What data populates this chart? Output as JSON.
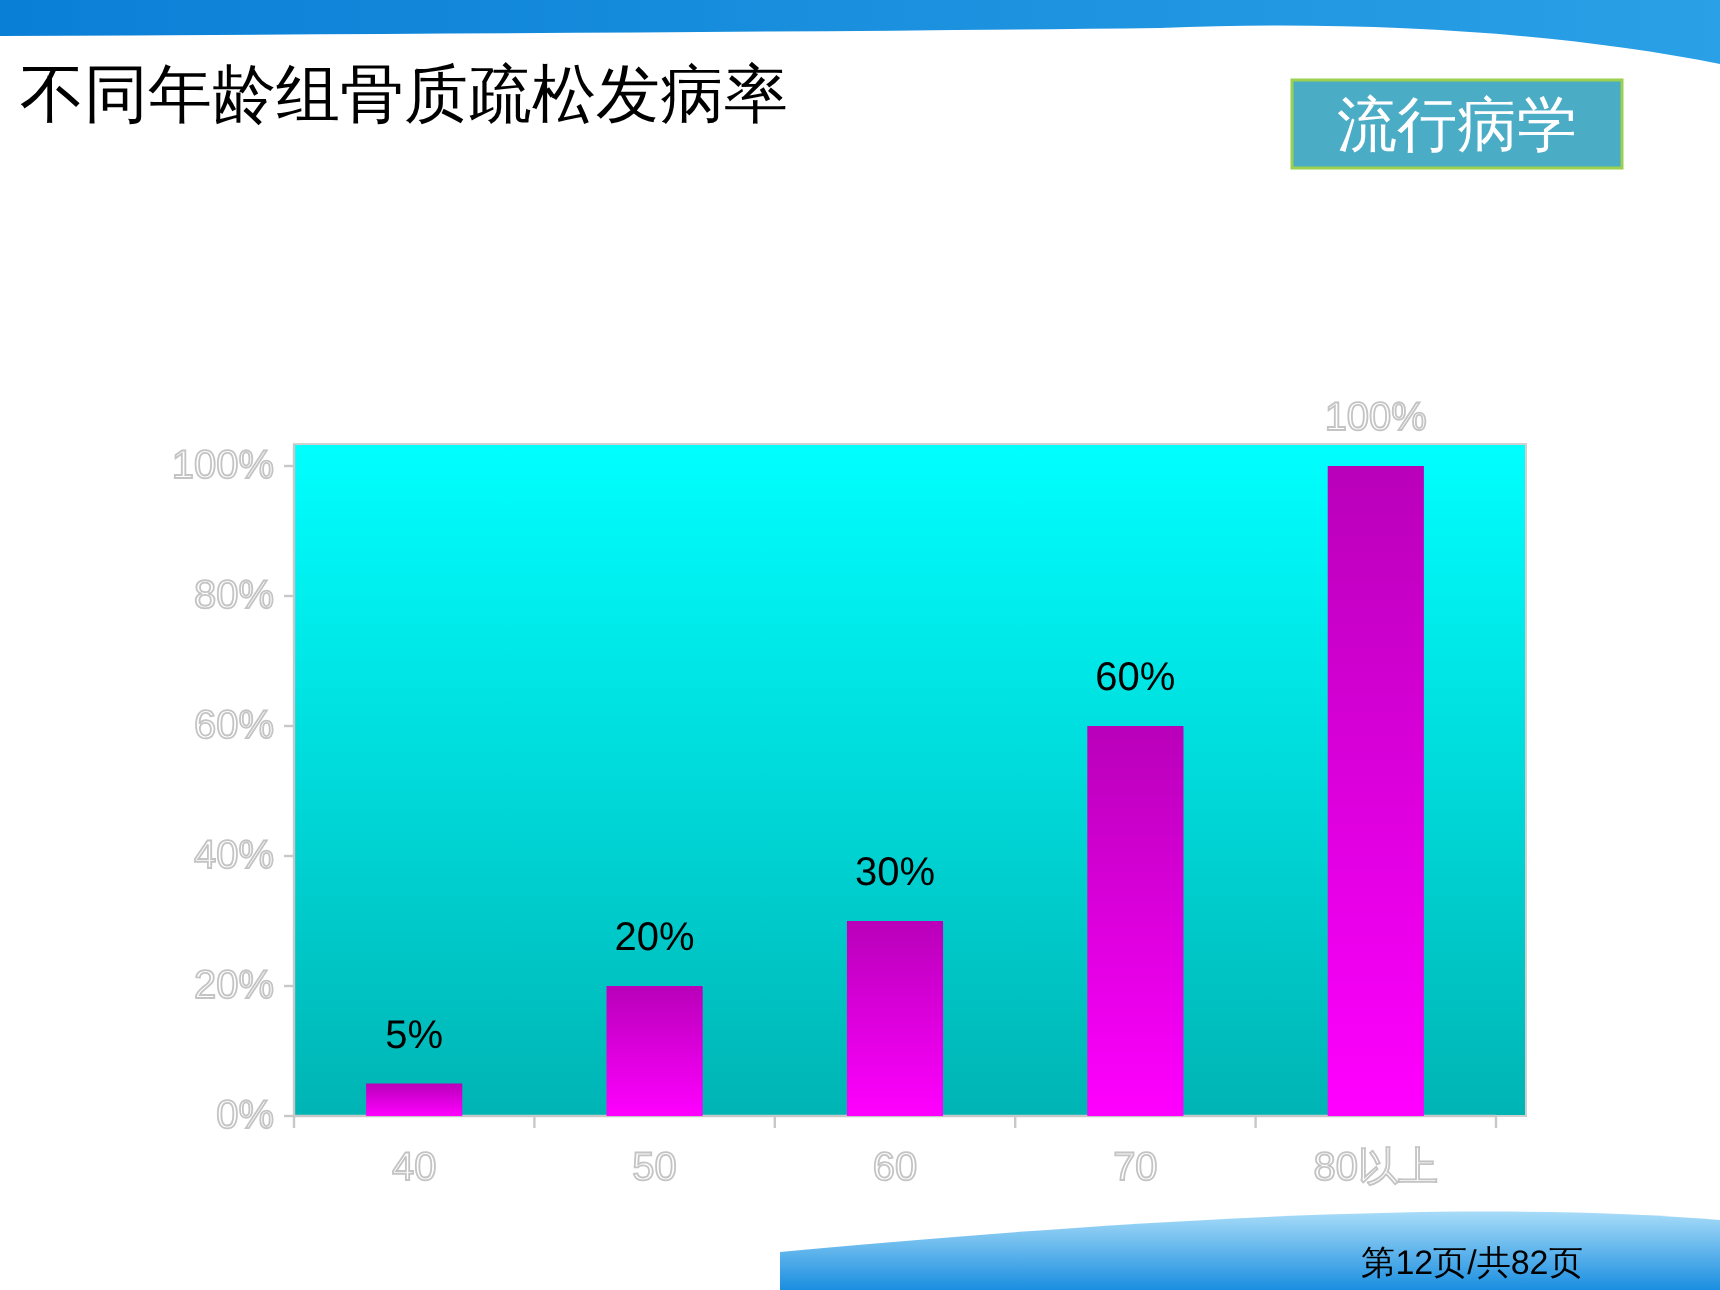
{
  "chart_data": {
    "type": "bar",
    "title": "不同年龄组骨质疏松发病率",
    "categories": [
      "40",
      "50",
      "60",
      "70",
      "80以上"
    ],
    "values": [
      5,
      20,
      30,
      60,
      100
    ],
    "color": "#ff00ff",
    "value_labels": [
      "5%",
      "20%",
      "30%",
      "60%",
      "100%"
    ],
    "ylim": [
      0,
      100
    ],
    "yticks": [
      {
        "value": 0,
        "label": "0%"
      },
      {
        "value": 20,
        "label": "20%"
      },
      {
        "value": 40,
        "label": "40%"
      },
      {
        "value": 60,
        "label": "60%"
      },
      {
        "value": 80,
        "label": "80%"
      },
      {
        "value": 100,
        "label": "100%"
      }
    ],
    "annotations": [
      "流行病学",
      "第12页/共82页"
    ]
  }
}
